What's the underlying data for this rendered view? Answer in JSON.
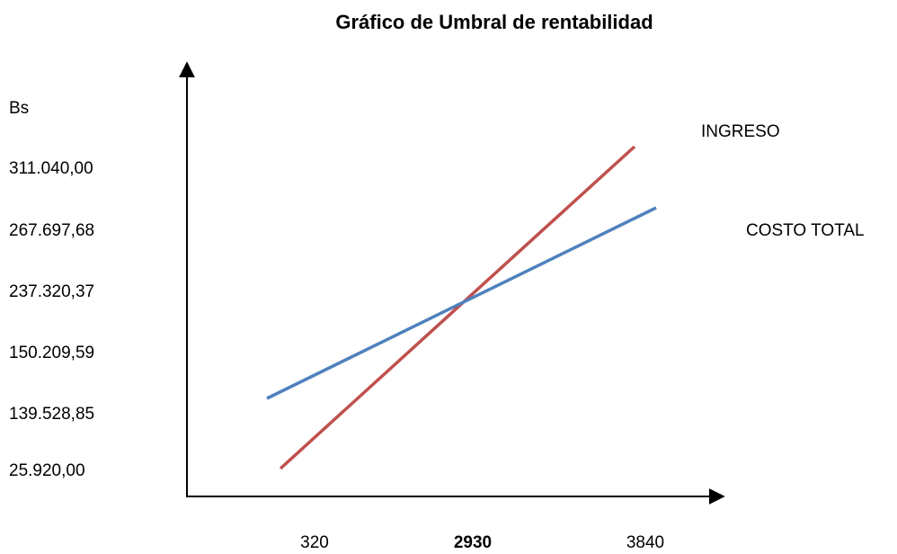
{
  "title": "Gráfico de Umbral de rentabilidad",
  "y_axis_label": "Bs",
  "y_labels": [
    "311.040,00",
    "267.697,68",
    "237.320,37",
    "150.209,59",
    "139.528,85",
    "25.920,00"
  ],
  "x_labels": [
    "320",
    "2930",
    "3840"
  ],
  "series": [
    {
      "name": "INGRESO",
      "color": "#c0504d"
    },
    {
      "name": "COSTO TOTAL",
      "color": "#4f81bd"
    }
  ]
}
